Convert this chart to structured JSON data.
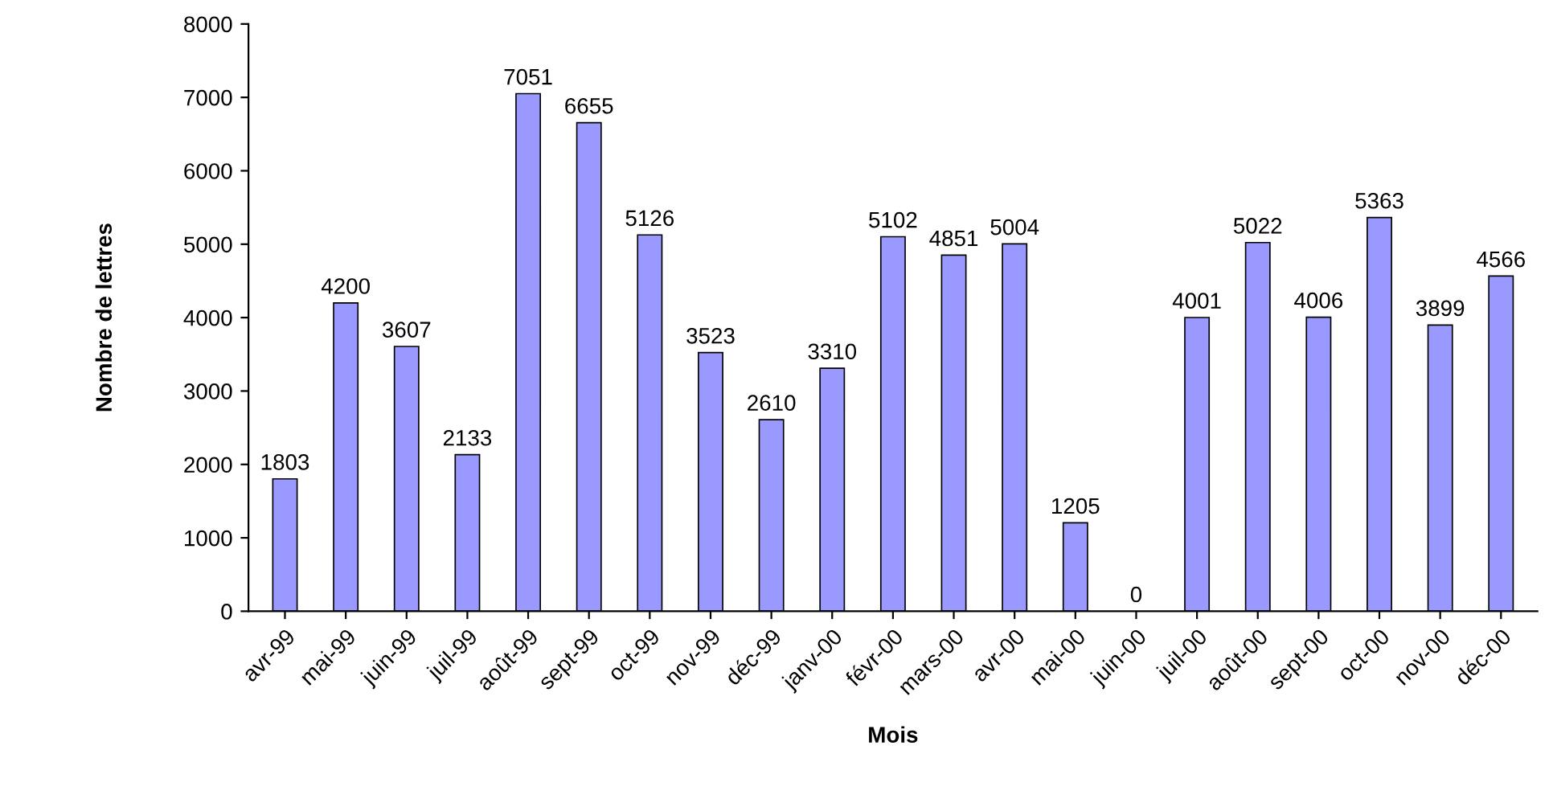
{
  "chart_data": {
    "type": "bar",
    "xlabel": "Mois",
    "ylabel": "Nombre de lettres",
    "categories": [
      "avr-99",
      "mai-99",
      "juin-99",
      "juil-99",
      "août-99",
      "sept-99",
      "oct-99",
      "nov-99",
      "déc-99",
      "janv-00",
      "févr-00",
      "mars-00",
      "avr-00",
      "mai-00",
      "juin-00",
      "juil-00",
      "août-00",
      "sept-00",
      "oct-00",
      "nov-00",
      "déc-00"
    ],
    "values": [
      1803,
      4200,
      3607,
      2133,
      7051,
      6655,
      5126,
      3523,
      2610,
      3310,
      5102,
      4851,
      5004,
      1205,
      0,
      4001,
      5022,
      4006,
      5363,
      3899,
      4566
    ],
    "color": "#9999ff",
    "ylim": [
      0,
      8000
    ],
    "yticks": [
      0,
      1000,
      2000,
      3000,
      4000,
      5000,
      6000,
      7000,
      8000
    ],
    "data_labels": true,
    "grid": false,
    "legend": false
  }
}
